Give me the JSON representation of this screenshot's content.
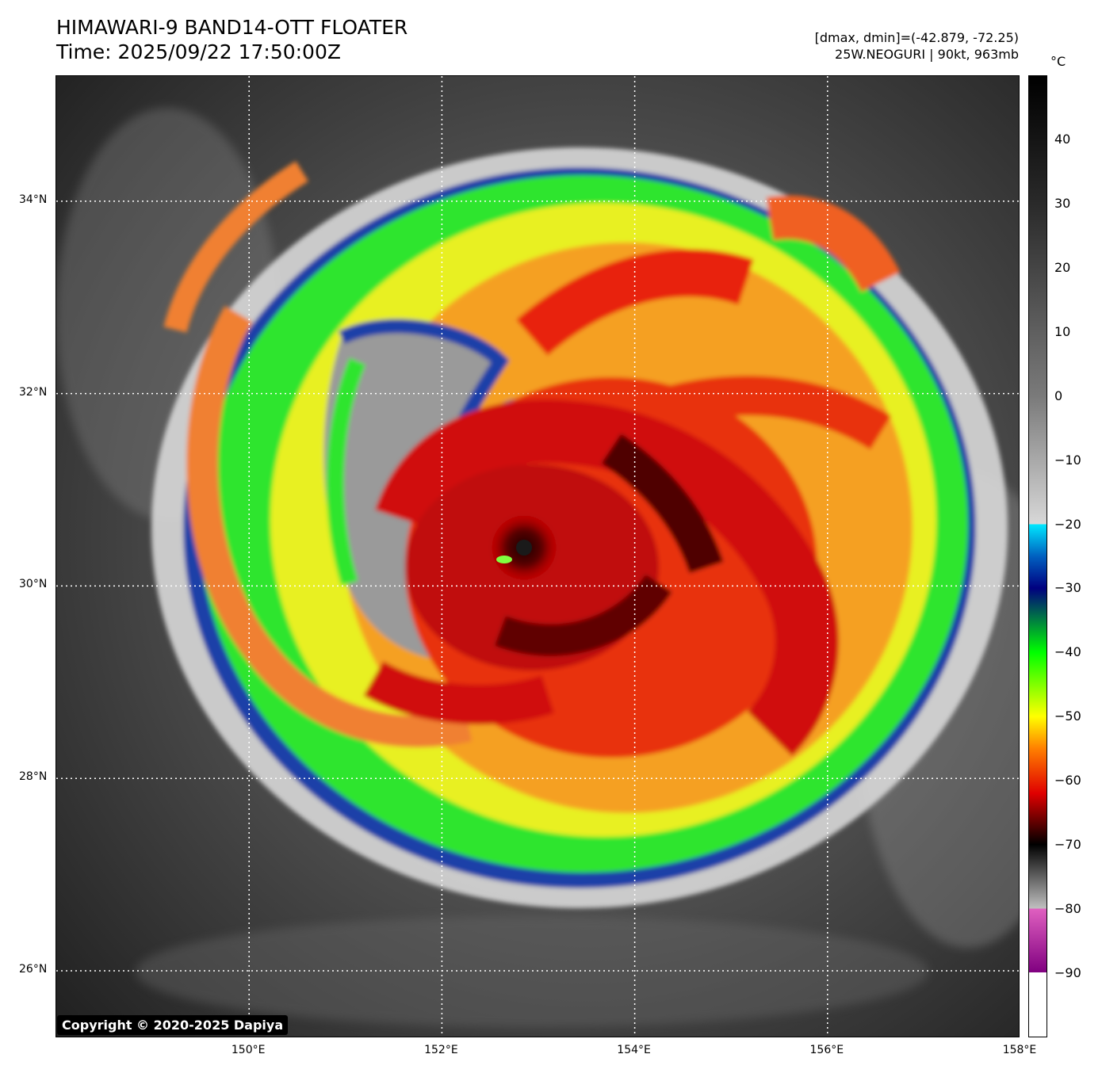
{
  "header": {
    "title_line1": "HIMAWARI-9 BAND14-OTT FLOATER",
    "title_line2": "Time: 2025/09/22 17:50:00Z",
    "info_line1": "[dmax, dmin]=(-42.879, -72.25)",
    "info_line2": "25W.NEOGURI | 90kt, 963mb"
  },
  "map": {
    "lat_labels": [
      "34°N",
      "32°N",
      "30°N",
      "28°N",
      "26°N"
    ],
    "lon_labels": [
      "150°E",
      "152°E",
      "154°E",
      "156°E",
      "158°E"
    ],
    "lat_values": [
      34,
      32,
      30,
      28,
      26
    ],
    "lon_values": [
      150,
      152,
      154,
      156,
      158
    ],
    "extent": {
      "lon_min": 148.0,
      "lon_max": 158.0,
      "lat_min": 25.3,
      "lat_max": 35.3
    },
    "storm_center": {
      "lon": 152.8,
      "lat": 30.5
    },
    "copyright": "Copyright © 2020-2025 Dapiya"
  },
  "colorbar": {
    "unit": "°C",
    "tick_labels": [
      "40",
      "30",
      "20",
      "10",
      "0",
      "−10",
      "−20",
      "−30",
      "−40",
      "−50",
      "−60",
      "−70",
      "−80",
      "−90"
    ],
    "tick_values": [
      40,
      30,
      20,
      10,
      0,
      -10,
      -20,
      -30,
      -40,
      -50,
      -60,
      -70,
      -80,
      -90
    ],
    "range": [
      -100,
      50
    ]
  }
}
